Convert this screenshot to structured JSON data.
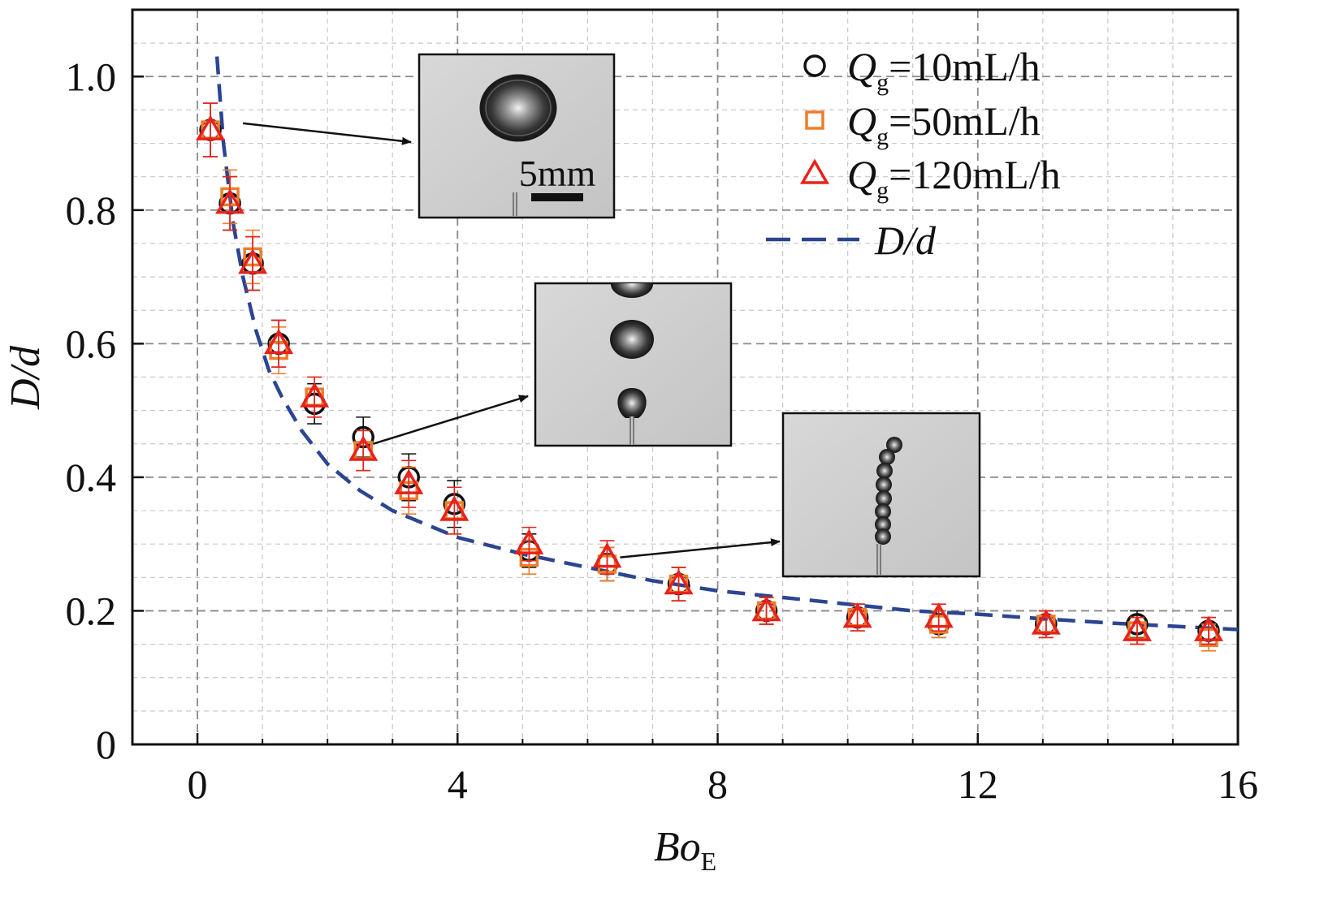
{
  "chart_data": {
    "type": "scatter",
    "title": "",
    "xlabel": {
      "main": "Bo",
      "sub": "E"
    },
    "ylabel": "D/d",
    "xlim": [
      -1,
      16
    ],
    "ylim": [
      0,
      1.1
    ],
    "x_ticks": [
      0,
      4,
      8,
      12,
      16
    ],
    "x_tick_labels": [
      "0",
      "4",
      "8",
      "12",
      "16"
    ],
    "y_ticks": [
      0,
      0.2,
      0.4,
      0.6,
      0.8,
      1.0
    ],
    "y_tick_labels": [
      "0",
      "0.2",
      "0.4",
      "0.6",
      "0.8",
      "1.0"
    ],
    "grid": true,
    "legend_position": "top-right",
    "series": [
      {
        "name": "Qg=10mL/h",
        "legend": {
          "q": "Q",
          "sub": "g",
          "rest": "=10mL/h"
        },
        "marker": "circle",
        "color": "#111111",
        "x": [
          0.2,
          0.5,
          0.85,
          1.25,
          1.8,
          2.55,
          3.25,
          3.95,
          5.1,
          6.3,
          7.4,
          8.75,
          10.15,
          11.4,
          13.05,
          14.45,
          15.55
        ],
        "y": [
          0.92,
          0.81,
          0.72,
          0.6,
          0.51,
          0.46,
          0.4,
          0.36,
          0.29,
          0.27,
          0.24,
          0.2,
          0.19,
          0.18,
          0.18,
          0.18,
          0.17
        ],
        "err": [
          0.04,
          0.04,
          0.04,
          0.035,
          0.03,
          0.03,
          0.035,
          0.035,
          0.025,
          0.025,
          0.025,
          0.02,
          0.02,
          0.02,
          0.02,
          0.02,
          0.02
        ]
      },
      {
        "name": "Qg=50mL/h",
        "legend": {
          "q": "Q",
          "sub": "g",
          "rest": "=50mL/h"
        },
        "marker": "square",
        "color": "#ee7d2a",
        "x": [
          0.2,
          0.5,
          0.85,
          1.25,
          1.8,
          2.55,
          3.25,
          3.95,
          5.1,
          6.3,
          7.4,
          8.75,
          10.15,
          11.4,
          13.05,
          14.45,
          15.55
        ],
        "y": [
          0.92,
          0.82,
          0.73,
          0.59,
          0.52,
          0.44,
          0.38,
          0.35,
          0.28,
          0.27,
          0.24,
          0.2,
          0.19,
          0.18,
          0.18,
          0.17,
          0.16
        ],
        "err": [
          0.04,
          0.04,
          0.04,
          0.035,
          0.03,
          0.03,
          0.035,
          0.035,
          0.025,
          0.025,
          0.025,
          0.02,
          0.02,
          0.02,
          0.02,
          0.02,
          0.02
        ]
      },
      {
        "name": "Qg=120mL/h",
        "legend": {
          "q": "Q",
          "sub": "g",
          "rest": "=120mL/h"
        },
        "marker": "triangle",
        "color": "#e8221b",
        "x": [
          0.2,
          0.5,
          0.85,
          1.25,
          1.8,
          2.55,
          3.25,
          3.95,
          5.1,
          6.3,
          7.4,
          8.75,
          10.15,
          11.4,
          13.05,
          14.45,
          15.55
        ],
        "y": [
          0.92,
          0.81,
          0.72,
          0.6,
          0.52,
          0.44,
          0.39,
          0.35,
          0.3,
          0.28,
          0.24,
          0.2,
          0.19,
          0.19,
          0.18,
          0.17,
          0.17
        ],
        "err": [
          0.04,
          0.04,
          0.04,
          0.035,
          0.03,
          0.03,
          0.035,
          0.035,
          0.025,
          0.025,
          0.025,
          0.02,
          0.02,
          0.02,
          0.02,
          0.02,
          0.02
        ]
      },
      {
        "name": "D/d",
        "marker": "dashed-line",
        "color": "#2b4592",
        "x": [
          0.3,
          0.4,
          0.55,
          0.7,
          0.9,
          1.1,
          1.3,
          1.6,
          2.0,
          2.5,
          3.0,
          3.5,
          4.0,
          5.0,
          6.0,
          7.0,
          8.0,
          9.0,
          10.0,
          11.0,
          12.0,
          13.0,
          14.0,
          15.0,
          16.0
        ],
        "y": [
          1.03,
          0.9,
          0.78,
          0.7,
          0.62,
          0.56,
          0.52,
          0.47,
          0.42,
          0.38,
          0.35,
          0.33,
          0.31,
          0.285,
          0.265,
          0.245,
          0.23,
          0.22,
          0.21,
          0.2,
          0.195,
          0.188,
          0.182,
          0.177,
          0.172
        ]
      }
    ],
    "insets": [
      {
        "name": "single-bubble",
        "scale_label": "5mm",
        "arrow_from": [
          0.7,
          0.93
        ]
      },
      {
        "name": "bubble-chain",
        "arrow_from": [
          2.7,
          0.45
        ]
      },
      {
        "name": "bubble-train",
        "arrow_from": [
          6.5,
          0.28
        ]
      }
    ]
  }
}
